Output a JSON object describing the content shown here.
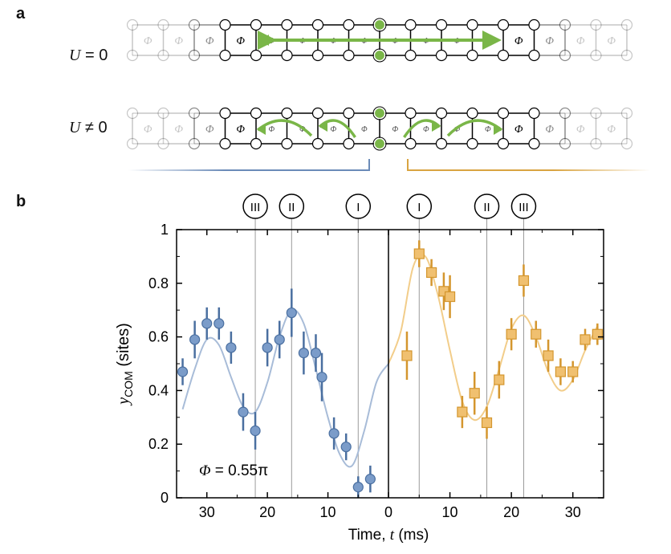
{
  "panels": {
    "a": "a",
    "b": "b"
  },
  "row_labels": {
    "u_zero": {
      "var": "U",
      "rel": " = 0"
    },
    "u_nonzero": {
      "var": "U",
      "rel": " ≠ 0"
    }
  },
  "plaquette_symbol": "Φ",
  "chart_data": {
    "type": "scatter",
    "ylabel_main": "y",
    "ylabel_sub": "COM",
    "ylabel_unit": " (sites)",
    "xlabel": "Time, t (ms)",
    "xlabel_parts": {
      "pre": "Time, ",
      "var": "t",
      "post": " (ms)"
    },
    "annotation": "Φ = 0.55π",
    "ylim": [
      0,
      1
    ],
    "yticks": [
      "0",
      "0.2",
      "0.4",
      "0.6",
      "0.8",
      "1"
    ],
    "xticks_left": [
      "30",
      "20",
      "10"
    ],
    "xticks_right": [
      "0",
      "10",
      "20",
      "30"
    ],
    "xlim_left": [
      35,
      0
    ],
    "xlim_right": [
      0,
      35
    ],
    "markers": [
      "III",
      "II",
      "I",
      "I",
      "II",
      "III"
    ],
    "marker_times": [
      22,
      16,
      5,
      5,
      16,
      22
    ],
    "series": [
      {
        "side": "left",
        "marker": "circle",
        "color": "#7b9cc9",
        "edge": "#4a6fa0",
        "x": [
          34,
          32,
          30,
          28,
          26,
          24,
          22,
          20,
          18,
          16,
          14,
          12,
          11,
          9,
          7,
          5,
          3
        ],
        "y": [
          0.47,
          0.59,
          0.65,
          0.65,
          0.56,
          0.32,
          0.25,
          0.56,
          0.59,
          0.69,
          0.54,
          0.54,
          0.45,
          0.24,
          0.19,
          0.04,
          0.07
        ],
        "err": [
          0.05,
          0.07,
          0.06,
          0.06,
          0.06,
          0.07,
          0.07,
          0.07,
          0.07,
          0.09,
          0.08,
          0.07,
          0.09,
          0.06,
          0.05,
          0.04,
          0.05
        ]
      },
      {
        "side": "right",
        "marker": "square",
        "color": "#f0c070",
        "edge": "#d4962e",
        "x": [
          3,
          5,
          7,
          9,
          10,
          12,
          14,
          16,
          18,
          20,
          22,
          24,
          26,
          28,
          30,
          32,
          34
        ],
        "y": [
          0.53,
          0.91,
          0.84,
          0.77,
          0.75,
          0.32,
          0.39,
          0.28,
          0.44,
          0.61,
          0.81,
          0.61,
          0.53,
          0.47,
          0.47,
          0.59,
          0.61
        ],
        "err": [
          0.09,
          0.05,
          0.05,
          0.07,
          0.08,
          0.06,
          0.08,
          0.06,
          0.07,
          0.06,
          0.06,
          0.05,
          0.06,
          0.05,
          0.04,
          0.04,
          0.04
        ]
      }
    ],
    "fits": [
      {
        "side": "left",
        "color": "#a8bcd8",
        "x": [
          34,
          32,
          30,
          28,
          26,
          24,
          22,
          20,
          18,
          16,
          14,
          12,
          10,
          8,
          6,
          4,
          2,
          0
        ],
        "y": [
          0.33,
          0.48,
          0.59,
          0.57,
          0.45,
          0.34,
          0.32,
          0.43,
          0.6,
          0.7,
          0.65,
          0.48,
          0.3,
          0.16,
          0.12,
          0.25,
          0.43,
          0.5
        ]
      },
      {
        "side": "right",
        "color": "#f2cd8a",
        "x": [
          0,
          2,
          4,
          6,
          8,
          10,
          12,
          14,
          16,
          18,
          20,
          22,
          24,
          26,
          28,
          30,
          32,
          34
        ],
        "y": [
          0.5,
          0.62,
          0.86,
          0.9,
          0.76,
          0.55,
          0.36,
          0.29,
          0.34,
          0.48,
          0.63,
          0.68,
          0.6,
          0.47,
          0.4,
          0.44,
          0.55,
          0.64
        ]
      }
    ]
  },
  "colors": {
    "green": "#7ab648",
    "blue": "#6b8bb8",
    "orange": "#d9a441",
    "axis": "#000000"
  }
}
